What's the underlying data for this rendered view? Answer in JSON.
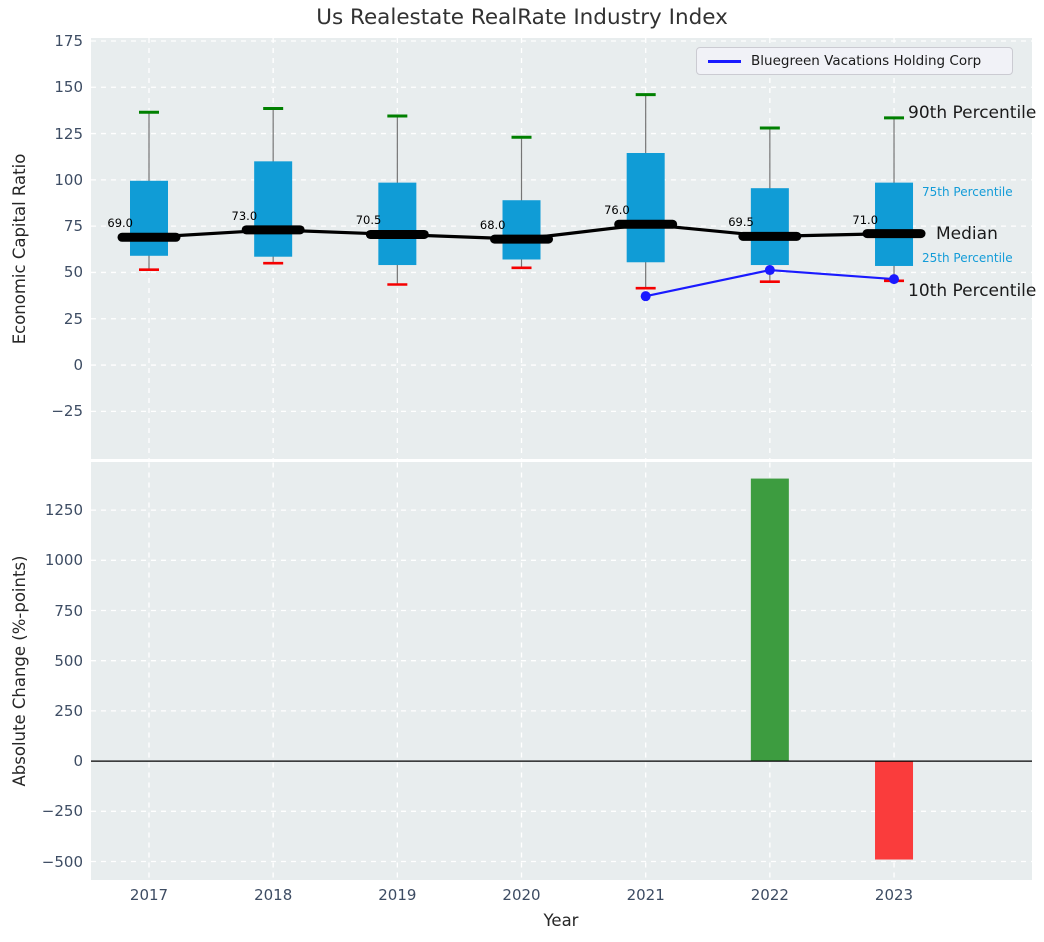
{
  "figure": {
    "title": "Us Realestate RealRate Industry Index"
  },
  "legend": {
    "label": "Bluegreen Vacations Holding Corp"
  },
  "annotations": {
    "p90": "90th Percentile",
    "p75": "75th Percentile",
    "median": "Median",
    "p25": "25th Percentile",
    "p10": "10th Percentile"
  },
  "colors": {
    "box_fill": "#109cd6",
    "median_line": "#000000",
    "whisker": "#757575",
    "cap_high": "#008000",
    "cap_low": "#f50000",
    "company_line": "#1a1aff",
    "bar_positive": "#3d9c40",
    "bar_negative": "#fa3c3c",
    "plot_bg": "#e8edee",
    "grid": "#ffffff",
    "tick_text": "#3d4c63",
    "percentile_label": "#139cd8",
    "zero_line": "#000000"
  },
  "chart_data": [
    {
      "type": "box",
      "title": "Us Realestate RealRate Industry Index",
      "ylabel": "Economic Capital Ratio",
      "ylim": [
        -51,
        176.6
      ],
      "yticks": [
        -25,
        0,
        25,
        50,
        75,
        100,
        125,
        150,
        175
      ],
      "ytick_labels": [
        "−25",
        "0",
        "25",
        "50",
        "75",
        "100",
        "125",
        "150",
        "175"
      ],
      "categories": [
        "2017",
        "2018",
        "2019",
        "2020",
        "2021",
        "2022",
        "2023"
      ],
      "grid": true,
      "legend_position": "upper right",
      "boxes": [
        {
          "year": "2017",
          "p10": 51.5,
          "p25": 59.0,
          "median": 69.0,
          "p75": 99.5,
          "p90": 136.5,
          "median_label": "69.0"
        },
        {
          "year": "2018",
          "p10": 55.0,
          "p25": 58.5,
          "median": 73.0,
          "p75": 110.0,
          "p90": 138.5,
          "median_label": "73.0"
        },
        {
          "year": "2019",
          "p10": 43.5,
          "p25": 54.0,
          "median": 70.5,
          "p75": 98.5,
          "p90": 134.5,
          "median_label": "70.5"
        },
        {
          "year": "2020",
          "p10": 52.5,
          "p25": 57.0,
          "median": 68.0,
          "p75": 89.0,
          "p90": 123.0,
          "median_label": "68.0"
        },
        {
          "year": "2021",
          "p10": 41.5,
          "p25": 55.5,
          "median": 76.0,
          "p75": 114.5,
          "p90": 146.0,
          "median_label": "76.0"
        },
        {
          "year": "2022",
          "p10": 45.0,
          "p25": 54.0,
          "median": 69.5,
          "p75": 95.5,
          "p90": 128.0,
          "median_label": "69.5"
        },
        {
          "year": "2023",
          "p10": 45.5,
          "p25": 53.5,
          "median": 71.0,
          "p75": 98.5,
          "p90": 133.5,
          "median_label": "71.0"
        }
      ],
      "series": [
        {
          "name": "Bluegreen Vacations Holding Corp",
          "points": [
            {
              "x": "2021",
              "y": 37.2
            },
            {
              "x": "2022",
              "y": 51.3
            },
            {
              "x": "2023",
              "y": 46.4
            }
          ]
        }
      ]
    },
    {
      "type": "bar",
      "ylabel": "Absolute Change (%-points)",
      "xlabel": "Year",
      "ylim": [
        -592,
        1487
      ],
      "yticks": [
        -500,
        -250,
        0,
        250,
        500,
        750,
        1000,
        1250
      ],
      "ytick_labels": [
        "−500",
        "−250",
        "0",
        "250",
        "500",
        "750",
        "1000",
        "1250"
      ],
      "categories": [
        "2017",
        "2018",
        "2019",
        "2020",
        "2021",
        "2022",
        "2023"
      ],
      "values": [
        null,
        null,
        null,
        null,
        null,
        1407,
        -490
      ],
      "grid": true
    }
  ]
}
